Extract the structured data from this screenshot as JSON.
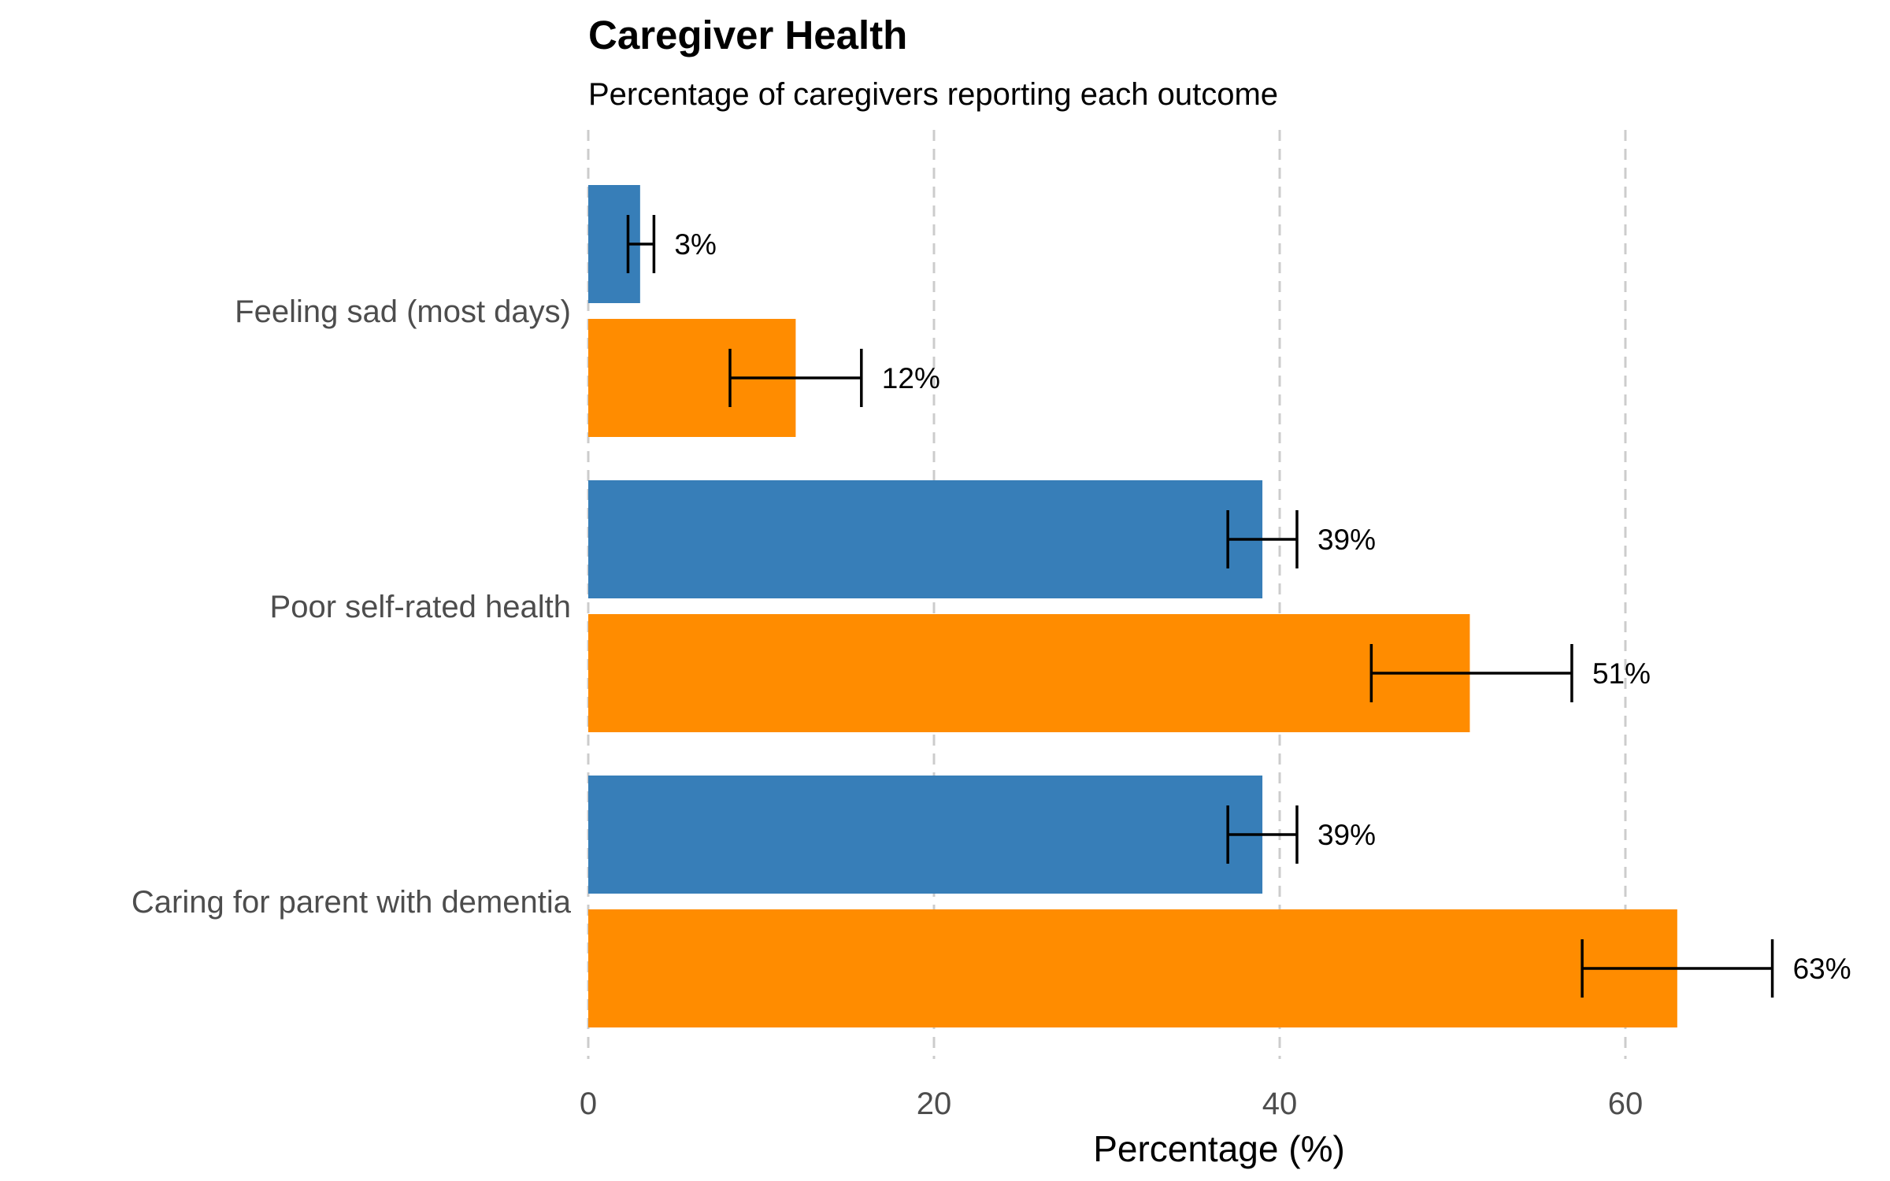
{
  "chart_data": {
    "type": "bar",
    "orientation": "horizontal",
    "title": "Caregiver Health",
    "subtitle": "Percentage of caregivers reporting each outcome",
    "xlabel": "Percentage (%)",
    "ylabel": "",
    "xlim": [
      0,
      73
    ],
    "x_ticks": [
      0,
      20,
      40,
      60
    ],
    "x_tick_labels": [
      "0",
      "20",
      "40",
      "60"
    ],
    "grid": "vertical-dashed",
    "legend": "none",
    "categories": [
      "Feeling sad (most days)",
      "Poor self-rated health",
      "Caring for parent with dementia"
    ],
    "series": [
      {
        "color": "#377eb8",
        "values": [
          3,
          39,
          39
        ],
        "error_low": [
          2.3,
          37,
          37
        ],
        "error_high": [
          3.8,
          41,
          41
        ],
        "labels": [
          "3%",
          "39%",
          "39%"
        ]
      },
      {
        "color": "#ff8c00",
        "values": [
          12,
          51,
          63
        ],
        "error_low": [
          8.2,
          45.3,
          57.5
        ],
        "error_high": [
          15.8,
          56.9,
          68.5
        ],
        "labels": [
          "12%",
          "51%",
          "63%"
        ]
      }
    ]
  }
}
